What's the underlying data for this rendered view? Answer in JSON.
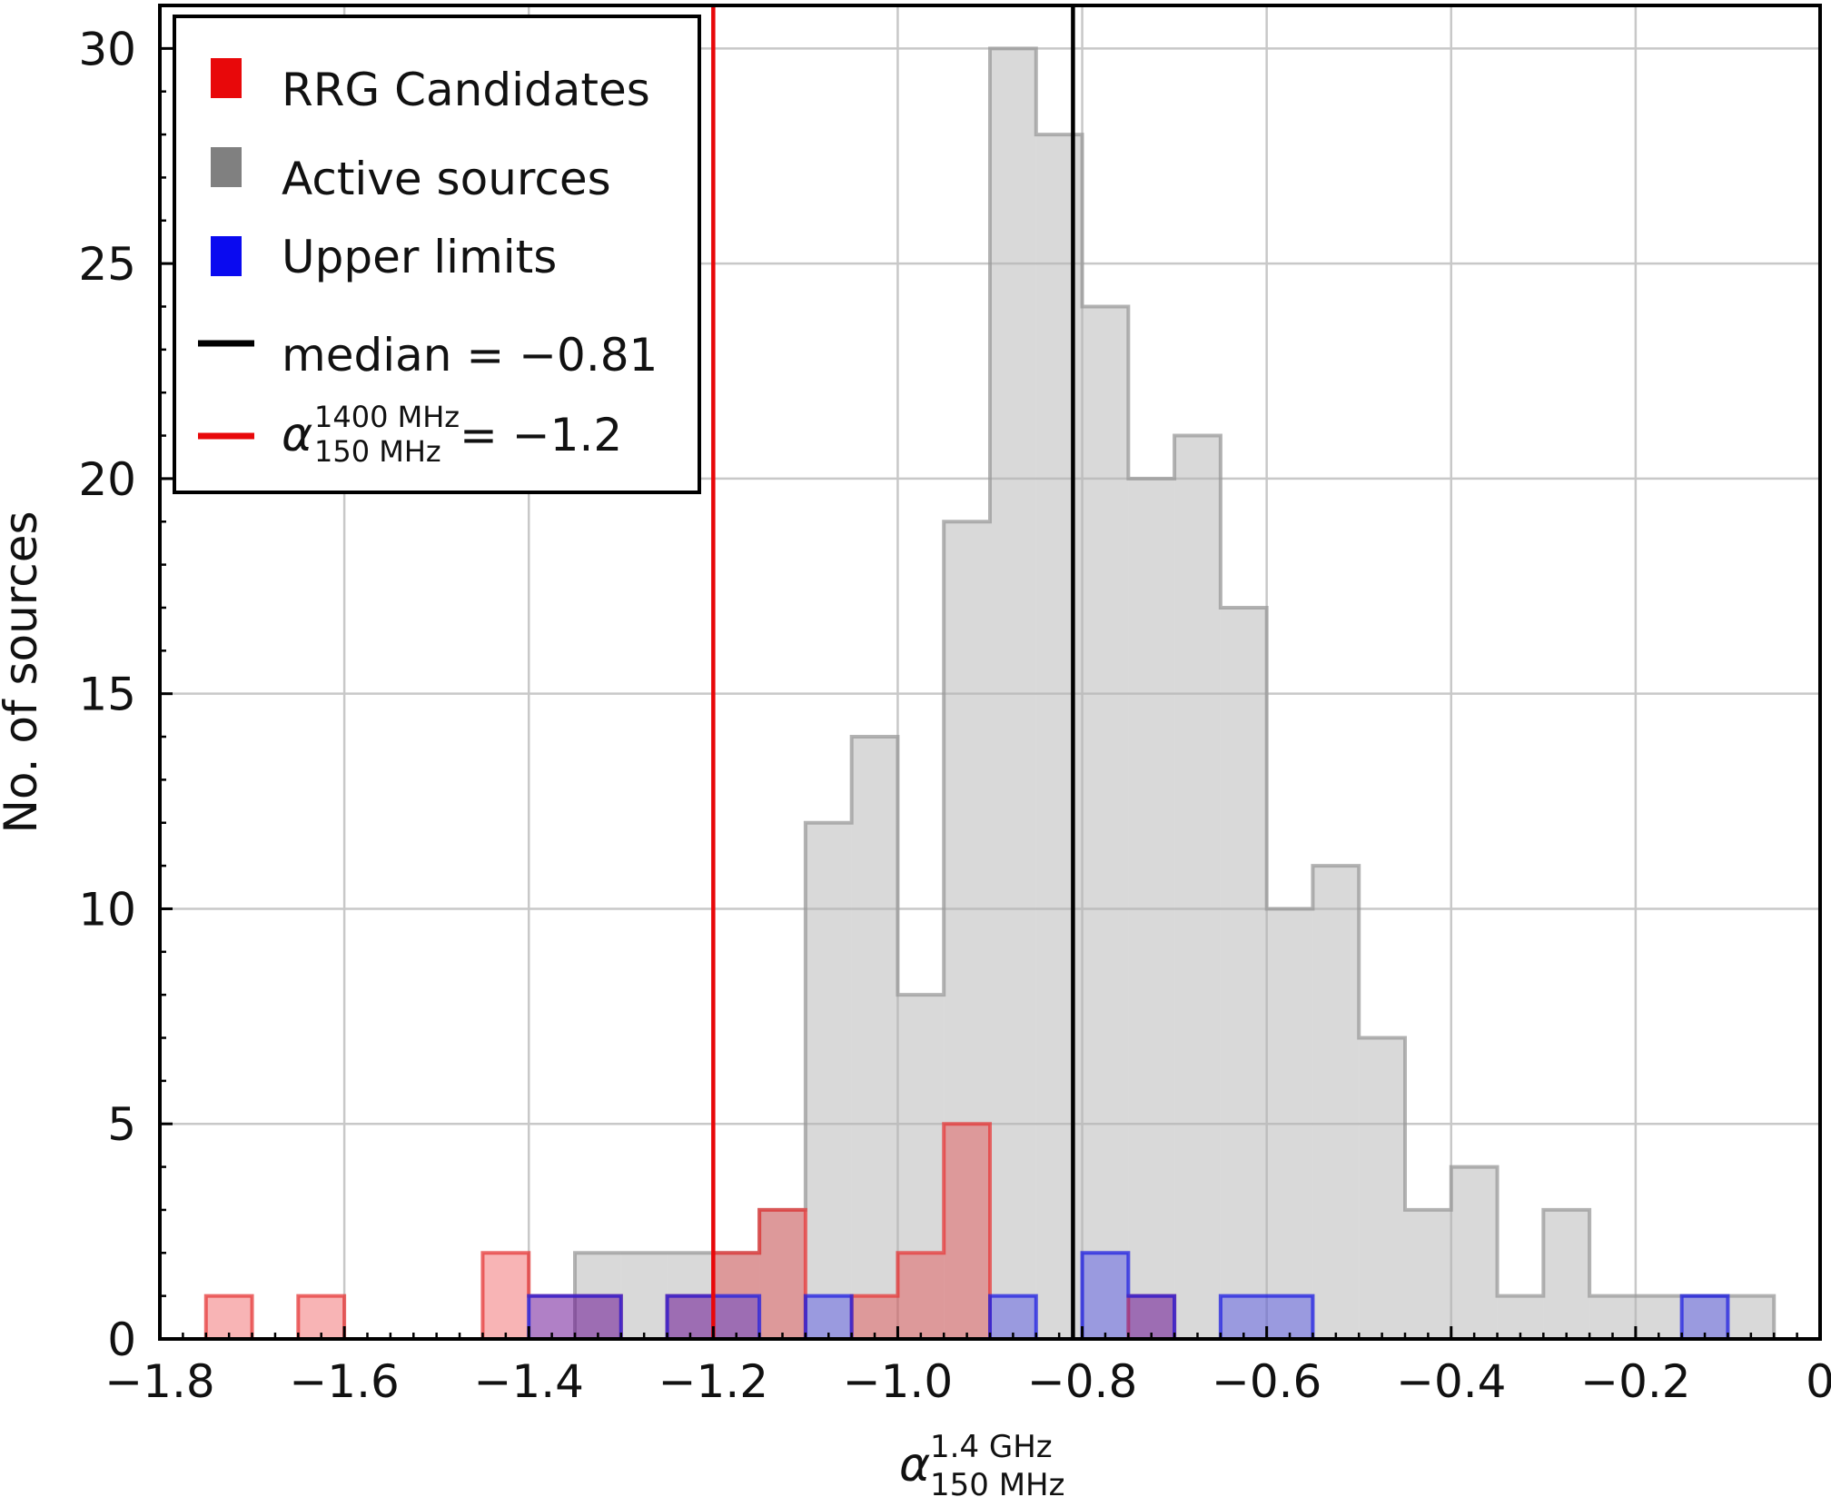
{
  "chart_data": {
    "type": "histogram",
    "xlabel": {
      "base": "α",
      "sup": "1.4 GHz",
      "sub": "150 MHz"
    },
    "ylabel": "No. of sources",
    "xlim": [
      -1.8,
      0
    ],
    "ylim": [
      0,
      31
    ],
    "xticks": [
      -1.8,
      -1.6,
      -1.4,
      -1.2,
      -1.0,
      -0.8,
      -0.6,
      -0.4,
      -0.2,
      0
    ],
    "xtick_labels": [
      "−1.8",
      "−1.6",
      "−1.4",
      "−1.2",
      "−1.0",
      "−0.8",
      "−0.6",
      "−0.4",
      "−0.2",
      "0"
    ],
    "yticks": [
      0,
      5,
      10,
      15,
      20,
      25,
      30
    ],
    "ytick_labels": [
      "0",
      "5",
      "10",
      "15",
      "20",
      "25",
      "30"
    ],
    "grid": true,
    "legend_position": "top-left",
    "series": [
      {
        "name": "Active sources",
        "color": "#808080",
        "bins": [
          {
            "x0": -1.35,
            "x1": -1.3,
            "count": 2
          },
          {
            "x0": -1.3,
            "x1": -1.25,
            "count": 2
          },
          {
            "x0": -1.25,
            "x1": -1.2,
            "count": 2
          },
          {
            "x0": -1.2,
            "x1": -1.15,
            "count": 2
          },
          {
            "x0": -1.15,
            "x1": -1.1,
            "count": 3
          },
          {
            "x0": -1.1,
            "x1": -1.05,
            "count": 12
          },
          {
            "x0": -1.05,
            "x1": -1.0,
            "count": 14
          },
          {
            "x0": -1.0,
            "x1": -0.95,
            "count": 8
          },
          {
            "x0": -0.95,
            "x1": -0.9,
            "count": 19
          },
          {
            "x0": -0.9,
            "x1": -0.85,
            "count": 30
          },
          {
            "x0": -0.85,
            "x1": -0.8,
            "count": 28
          },
          {
            "x0": -0.8,
            "x1": -0.75,
            "count": 24
          },
          {
            "x0": -0.75,
            "x1": -0.7,
            "count": 20
          },
          {
            "x0": -0.7,
            "x1": -0.65,
            "count": 21
          },
          {
            "x0": -0.65,
            "x1": -0.6,
            "count": 17
          },
          {
            "x0": -0.6,
            "x1": -0.55,
            "count": 10
          },
          {
            "x0": -0.55,
            "x1": -0.5,
            "count": 11
          },
          {
            "x0": -0.5,
            "x1": -0.45,
            "count": 7
          },
          {
            "x0": -0.45,
            "x1": -0.4,
            "count": 3
          },
          {
            "x0": -0.4,
            "x1": -0.35,
            "count": 4
          },
          {
            "x0": -0.35,
            "x1": -0.3,
            "count": 1
          },
          {
            "x0": -0.3,
            "x1": -0.25,
            "count": 3
          },
          {
            "x0": -0.25,
            "x1": -0.2,
            "count": 1
          },
          {
            "x0": -0.2,
            "x1": -0.15,
            "count": 1
          },
          {
            "x0": -0.15,
            "x1": -0.1,
            "count": 1
          },
          {
            "x0": -0.1,
            "x1": -0.05,
            "count": 1
          }
        ]
      },
      {
        "name": "RRG Candidates",
        "color": "#e8080a",
        "bins": [
          {
            "x0": -1.75,
            "x1": -1.7,
            "count": 1
          },
          {
            "x0": -1.65,
            "x1": -1.6,
            "count": 1
          },
          {
            "x0": -1.45,
            "x1": -1.4,
            "count": 2
          },
          {
            "x0": -1.4,
            "x1": -1.35,
            "count": 1
          },
          {
            "x0": -1.35,
            "x1": -1.3,
            "count": 1
          },
          {
            "x0": -1.25,
            "x1": -1.2,
            "count": 1
          },
          {
            "x0": -1.2,
            "x1": -1.15,
            "count": 2
          },
          {
            "x0": -1.15,
            "x1": -1.1,
            "count": 3
          },
          {
            "x0": -1.05,
            "x1": -1.0,
            "count": 1
          },
          {
            "x0": -1.0,
            "x1": -0.95,
            "count": 2
          },
          {
            "x0": -0.95,
            "x1": -0.9,
            "count": 5
          },
          {
            "x0": -0.75,
            "x1": -0.7,
            "count": 1
          }
        ]
      },
      {
        "name": "Upper limits",
        "color": "#0a0af0",
        "bins": [
          {
            "x0": -1.4,
            "x1": -1.35,
            "count": 1
          },
          {
            "x0": -1.35,
            "x1": -1.3,
            "count": 1
          },
          {
            "x0": -1.25,
            "x1": -1.2,
            "count": 1
          },
          {
            "x0": -1.2,
            "x1": -1.15,
            "count": 1
          },
          {
            "x0": -1.1,
            "x1": -1.05,
            "count": 1
          },
          {
            "x0": -0.9,
            "x1": -0.85,
            "count": 1
          },
          {
            "x0": -0.8,
            "x1": -0.75,
            "count": 2
          },
          {
            "x0": -0.75,
            "x1": -0.7,
            "count": 1
          },
          {
            "x0": -0.65,
            "x1": -0.6,
            "count": 1
          },
          {
            "x0": -0.6,
            "x1": -0.55,
            "count": 1
          },
          {
            "x0": -0.15,
            "x1": -0.1,
            "count": 1
          }
        ]
      }
    ],
    "vlines": [
      {
        "name": "median",
        "x": -0.81,
        "color": "#000000"
      },
      {
        "name": "alpha-cut",
        "x": -1.2,
        "color": "#e8080a"
      }
    ],
    "legend": {
      "entries": [
        {
          "key": "rrg",
          "label": "RRG Candidates",
          "color": "#e8080a",
          "kind": "patch"
        },
        {
          "key": "active",
          "label": "Active sources",
          "color": "#808080",
          "kind": "patch"
        },
        {
          "key": "upper",
          "label": "Upper limits",
          "color": "#0a0af0",
          "kind": "patch"
        },
        {
          "key": "median",
          "label": "median = −0.81",
          "color": "#000000",
          "kind": "line"
        },
        {
          "key": "alpha",
          "label_parts": {
            "base": "α",
            "sup": "1400 MHz",
            "sub": "150 MHz",
            "rest": " = −1.2"
          },
          "color": "#e8080a",
          "kind": "line"
        }
      ]
    }
  }
}
